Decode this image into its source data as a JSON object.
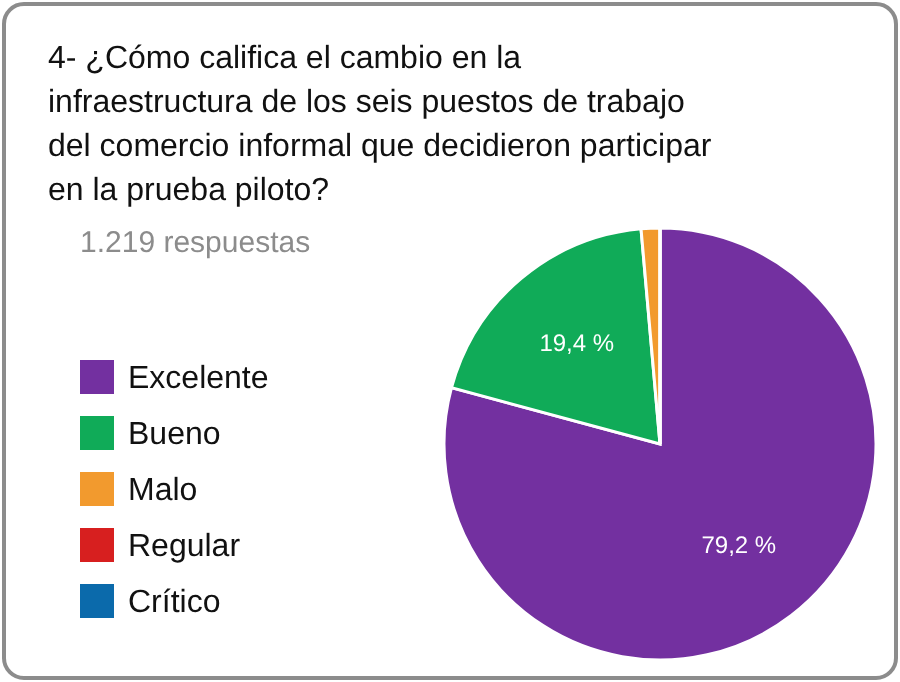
{
  "chart_data": {
    "type": "pie",
    "title": "4- ¿Cómo califica el cambio en la infraestructura de los seis puestos de trabajo del comercio informal que decidieron participar en la prueba piloto?",
    "subtitle": "1.219 respuestas",
    "categories": [
      "Excelente",
      "Bueno",
      "Malo",
      "Regular",
      "Crítico"
    ],
    "values": [
      79.2,
      19.4,
      1.4,
      0,
      0
    ],
    "colors": [
      "#7330a0",
      "#10ab58",
      "#f29a2e",
      "#d71f1f",
      "#0b6aab"
    ],
    "value_labels": [
      "79,2 %",
      "19,4 %",
      null,
      null,
      null
    ],
    "legend": "left"
  }
}
